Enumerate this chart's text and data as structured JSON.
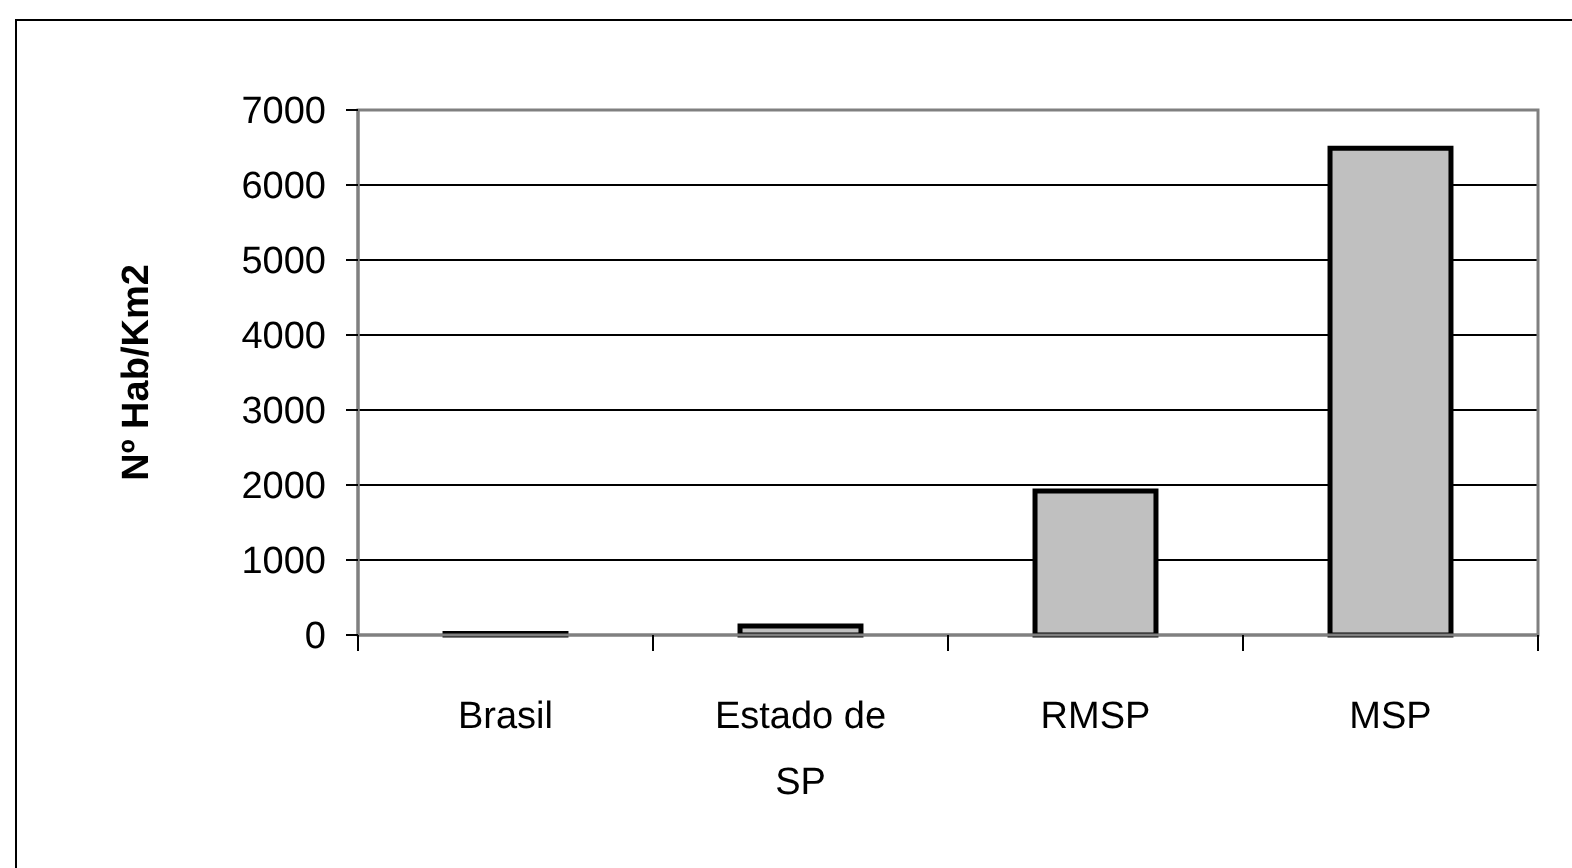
{
  "chart_data": {
    "type": "bar",
    "ylabel": "Nº Hab/Km2",
    "categories": [
      "Brasil",
      "Estado de SP",
      "RMSP",
      "MSP"
    ],
    "values": [
      20,
      120,
      1920,
      6490
    ],
    "color": "#c0c0c0",
    "ylim": [
      0,
      7000
    ],
    "yticks": [
      0,
      1000,
      2000,
      3000,
      4000,
      5000,
      6000,
      7000
    ],
    "grid": "y"
  }
}
